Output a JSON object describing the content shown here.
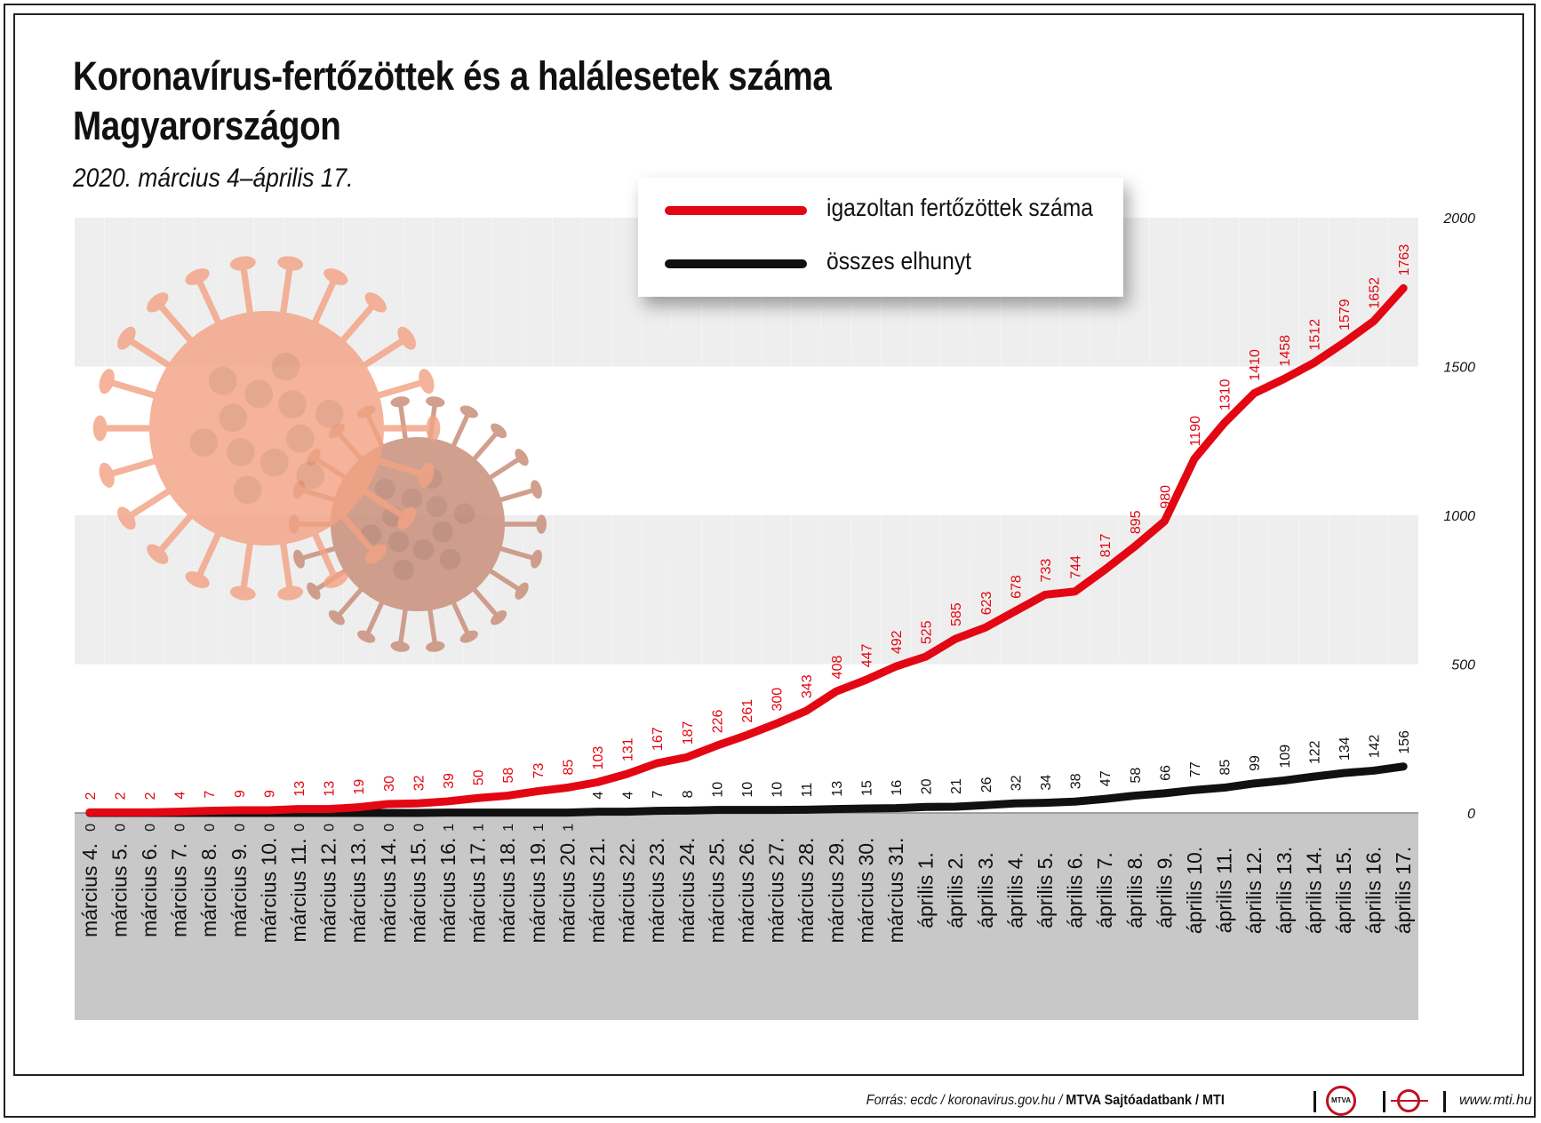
{
  "header": {
    "title_line1": "Koronavírus-fertőzöttek és a halálesetek száma",
    "title_line2": "Magyarországon",
    "subtitle": "2020. március 4–április 17."
  },
  "legend": {
    "infected_label": "igazoltan fertőzöttek száma",
    "deaths_label": "összes elhunyt"
  },
  "colors": {
    "infected": "#e30613",
    "deaths": "#111111",
    "band_light": "#eeeeee",
    "band_dark": "#c8c8c8",
    "virus": "#f2a384"
  },
  "chart_data": {
    "type": "line",
    "categories": [
      "március 4.",
      "március 5.",
      "március 6.",
      "március 7.",
      "március 8.",
      "március 9.",
      "március 10.",
      "március 11.",
      "március 12.",
      "március 13.",
      "március 14.",
      "március 15.",
      "március 16.",
      "március 17.",
      "március 18.",
      "március 19.",
      "március 20.",
      "március 21.",
      "március 22.",
      "március 23.",
      "március 24.",
      "március 25.",
      "március 26.",
      "március 27.",
      "március 28.",
      "március 29.",
      "március 30.",
      "március 31.",
      "április 1.",
      "április 2.",
      "április 3.",
      "április 4.",
      "április 5.",
      "április 6.",
      "április 7.",
      "április 8.",
      "április 9.",
      "április 10.",
      "április 11.",
      "április 12.",
      "április 13.",
      "április 14.",
      "április 15.",
      "április 16.",
      "április 17."
    ],
    "series": [
      {
        "name": "igazoltan fertőzöttek száma",
        "values": [
          2,
          2,
          2,
          4,
          7,
          9,
          9,
          13,
          13,
          19,
          30,
          32,
          39,
          50,
          58,
          73,
          85,
          103,
          131,
          167,
          187,
          226,
          261,
          300,
          343,
          408,
          447,
          492,
          525,
          585,
          623,
          678,
          733,
          744,
          817,
          895,
          980,
          1190,
          1310,
          1410,
          1458,
          1512,
          1579,
          1652,
          1763
        ]
      },
      {
        "name": "összes elhunyt",
        "values": [
          0,
          0,
          0,
          0,
          0,
          0,
          0,
          0,
          0,
          0,
          0,
          0,
          1,
          1,
          1,
          1,
          1,
          4,
          4,
          7,
          8,
          10,
          10,
          10,
          11,
          13,
          15,
          16,
          20,
          21,
          26,
          32,
          34,
          38,
          47,
          58,
          66,
          77,
          85,
          99,
          109,
          122,
          134,
          142,
          156
        ]
      }
    ],
    "yticks": [
      "0",
      "500",
      "1000",
      "1500",
      "2000"
    ],
    "ylim": [
      0,
      2000
    ],
    "legend_position": "top-right"
  },
  "footer": {
    "source_prefix": "Forrás: ecdc / koronavirus.gov.hu / ",
    "source_bold": "MTVA Sajtóadatbank / MTI",
    "logo_text": "MTVA",
    "url": "www.mti.hu"
  }
}
